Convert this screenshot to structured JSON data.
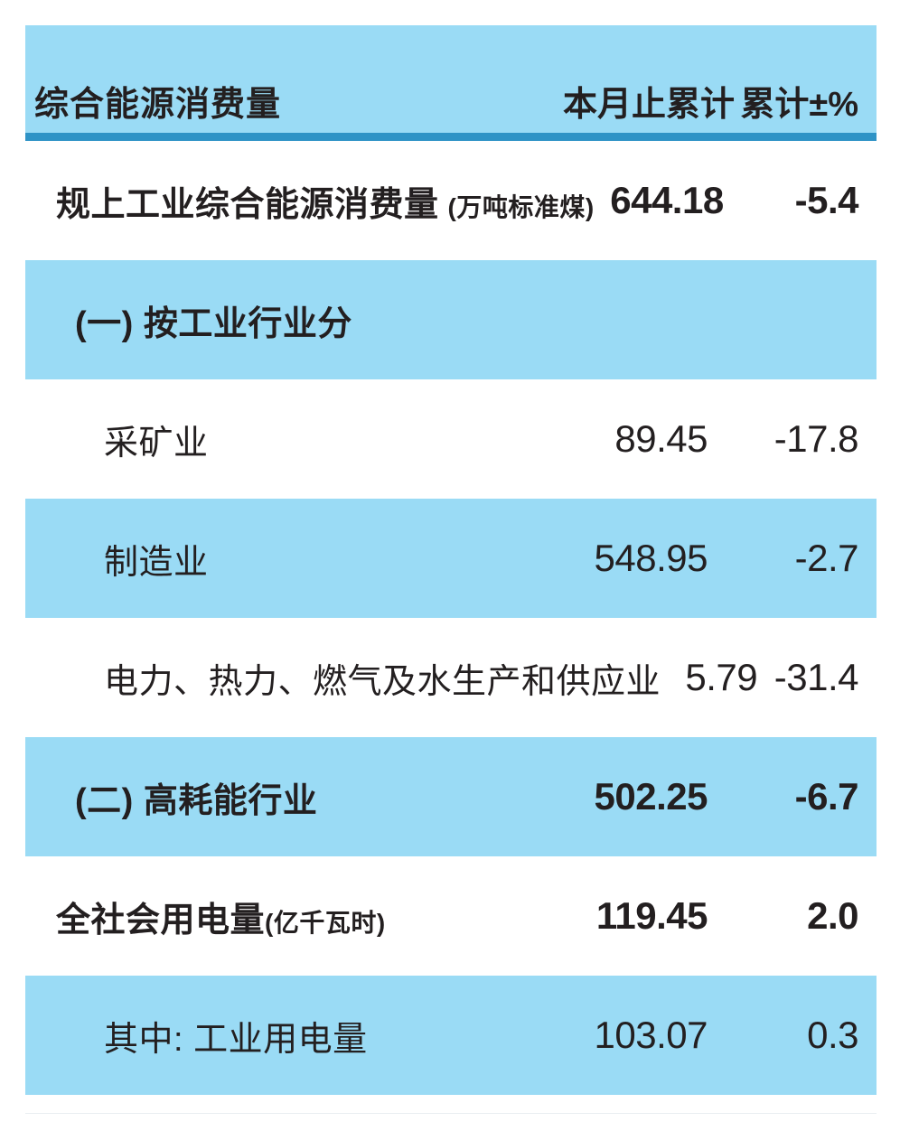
{
  "colors": {
    "light_blue": "#9adbf5",
    "rule_blue": "#2e93c6",
    "text": "#231f20"
  },
  "table": {
    "header": {
      "col1": "综合能源消费量",
      "col2": "本月止累计",
      "col3": "累计±%"
    },
    "rows": [
      {
        "label": "规上工业综合能源消费量",
        "unit": "(万吨标准煤)",
        "value": "644.18",
        "pct": "-5.4"
      },
      {
        "label": "(一) 按工业行业分",
        "unit": "",
        "value": "",
        "pct": ""
      },
      {
        "label": "采矿业",
        "unit": "",
        "value": "89.45",
        "pct": "-17.8"
      },
      {
        "label": "制造业",
        "unit": "",
        "value": "548.95",
        "pct": "-2.7"
      },
      {
        "label": "电力、热力、燃气及水生产和供应业",
        "unit": "",
        "value": "5.79",
        "pct": "-31.4"
      },
      {
        "label": "(二) 高耗能行业",
        "unit": "",
        "value": "502.25",
        "pct": "-6.7"
      },
      {
        "label": "全社会用电量",
        "unit": "(亿千瓦时)",
        "value": "119.45",
        "pct": "2.0"
      },
      {
        "label": "其中: 工业用电量",
        "unit": "",
        "value": "103.07",
        "pct": "0.3"
      }
    ]
  },
  "chart_data": {
    "type": "table",
    "title": "综合能源消费量",
    "columns": [
      "综合能源消费量",
      "本月止累计",
      "累计±%"
    ],
    "rows": [
      {
        "category": "规上工业综合能源消费量 (万吨标准煤)",
        "cumulative": 644.18,
        "cumulative_pct": -5.4
      },
      {
        "category": "(一) 按工业行业分",
        "cumulative": null,
        "cumulative_pct": null
      },
      {
        "category": "采矿业",
        "cumulative": 89.45,
        "cumulative_pct": -17.8
      },
      {
        "category": "制造业",
        "cumulative": 548.95,
        "cumulative_pct": -2.7
      },
      {
        "category": "电力、热力、燃气及水生产和供应业",
        "cumulative": 5.79,
        "cumulative_pct": -31.4
      },
      {
        "category": "(二) 高耗能行业",
        "cumulative": 502.25,
        "cumulative_pct": -6.7
      },
      {
        "category": "全社会用电量 (亿千瓦时)",
        "cumulative": 119.45,
        "cumulative_pct": 2.0
      },
      {
        "category": "其中: 工业用电量",
        "cumulative": 103.07,
        "cumulative_pct": 0.3
      }
    ],
    "layout": {
      "striped": true,
      "stripe_color": "#9adbf5",
      "header_rule_color": "#2e93c6"
    }
  }
}
